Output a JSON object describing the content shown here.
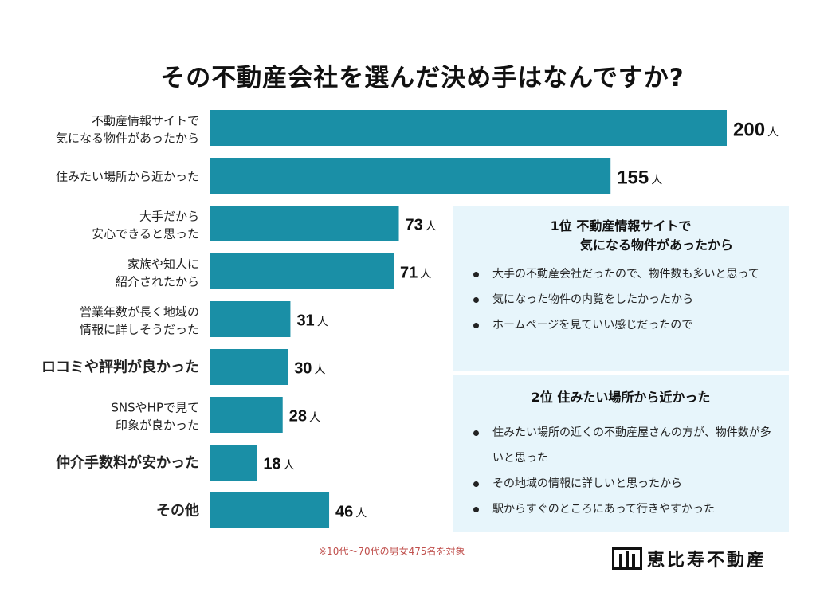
{
  "chart_data": {
    "type": "bar",
    "orientation": "horizontal",
    "title": "その不動産会社を選んだ決め手はなんですか?",
    "categories": [
      "不動産情報サイトで\n気になる物件があったから",
      "住みたい場所から近かった",
      "大手だから\n安心できると思った",
      "家族や知人に\n紹介されたから",
      "営業年数が長く地域の\n情報に詳しそうだった",
      "ロコミや評判が良かった",
      "SNSやHPで見て\n印象が良かった",
      "仲介手数料が安かった",
      "その他"
    ],
    "values": [
      200,
      155,
      73,
      71,
      31,
      30,
      28,
      18,
      46
    ],
    "unit": "人",
    "bar_color": "#1a8fa6",
    "xlim": [
      0,
      200
    ]
  },
  "panels": [
    {
      "heading_line1": "1位 不動産情報サイトで",
      "heading_line2": "気になる物件があったから",
      "bullets": [
        "大手の不動産会社だったので、物件数も多いと思って",
        "気になった物件の内覧をしたかったから",
        "ホームページを見ていい感じだったので"
      ]
    },
    {
      "heading_line1": "2位 住みたい場所から近かった",
      "bullets": [
        "住みたい場所の近くの不動産屋さんの方が、物件数が多いと思った",
        "その地域の情報に詳しいと思ったから",
        "駅からすぐのところにあって行きやすかった"
      ]
    }
  ],
  "footnote": "※10代〜70代の男女475名を対象",
  "logo_text": "恵比寿不動産",
  "colors": {
    "panel_bg": "#e7f5fb",
    "footnote": "#c0504d",
    "bar": "#1a8fa6"
  }
}
